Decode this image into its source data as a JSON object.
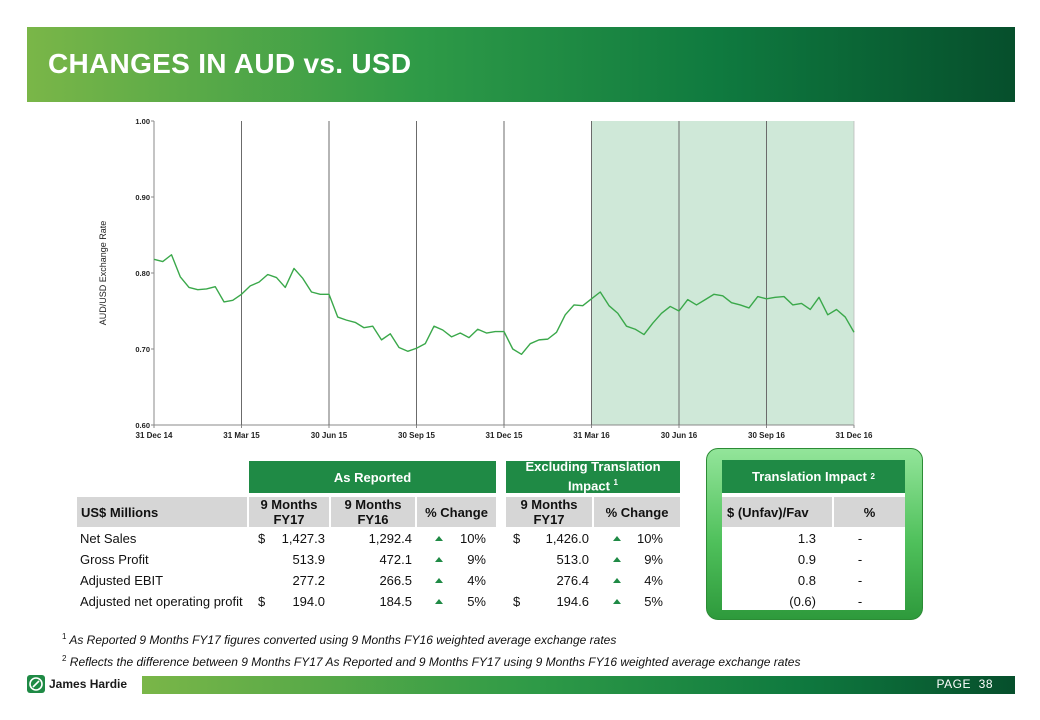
{
  "header": {
    "title": "CHANGES IN AUD vs. USD"
  },
  "chart_data": {
    "type": "line",
    "ylabel": "AUD/USD Exchange Rate",
    "ylim": [
      0.6,
      1.0
    ],
    "yticks": [
      "1.00",
      "0.90",
      "0.80",
      "0.70",
      "0.60"
    ],
    "yticks_values": [
      1.0,
      0.9,
      0.8,
      0.7,
      0.6
    ],
    "categories": [
      "31 Dec 14",
      "31 Mar 15",
      "30 Jun 15",
      "30 Sep 15",
      "31 Dec 15",
      "31 Mar 16",
      "30 Jun 16",
      "30 Sep 16",
      "31 Dec 16"
    ],
    "vertical_gridlines_at": [
      1,
      2,
      3,
      4,
      5,
      6,
      7
    ],
    "shaded_range": [
      5,
      8
    ],
    "line_color": "#3aa84a",
    "shade_color": "#cfe8d8",
    "series": [
      {
        "x": [
          0,
          0.1,
          0.2,
          0.3,
          0.4,
          0.5,
          0.6,
          0.7,
          0.8,
          0.9,
          1.0,
          1.1,
          1.2,
          1.3,
          1.4,
          1.5,
          1.6,
          1.7,
          1.8,
          1.9,
          2.0,
          2.1,
          2.2,
          2.3,
          2.4,
          2.5,
          2.6,
          2.7,
          2.8,
          2.9,
          3.0,
          3.1,
          3.2,
          3.3,
          3.4,
          3.5,
          3.6,
          3.7,
          3.8,
          3.9,
          4.0,
          4.1,
          4.2,
          4.3,
          4.4,
          4.5,
          4.6,
          4.7,
          4.8,
          4.9,
          5.0,
          5.1,
          5.2,
          5.3,
          5.4,
          5.5,
          5.6,
          5.7,
          5.8,
          5.9,
          6.0,
          6.1,
          6.2,
          6.3,
          6.4,
          6.5,
          6.6,
          6.7,
          6.8,
          6.9,
          7.0,
          7.1,
          7.2,
          7.3,
          7.4,
          7.5,
          7.6,
          7.7,
          7.8,
          7.9,
          8.0
        ],
        "y": [
          0.818,
          0.815,
          0.824,
          0.795,
          0.781,
          0.778,
          0.779,
          0.782,
          0.762,
          0.764,
          0.772,
          0.783,
          0.788,
          0.798,
          0.794,
          0.781,
          0.806,
          0.793,
          0.775,
          0.772,
          0.772,
          0.742,
          0.738,
          0.735,
          0.728,
          0.73,
          0.712,
          0.72,
          0.702,
          0.697,
          0.701,
          0.707,
          0.73,
          0.725,
          0.716,
          0.721,
          0.715,
          0.726,
          0.721,
          0.723,
          0.723,
          0.7,
          0.693,
          0.707,
          0.712,
          0.713,
          0.722,
          0.745,
          0.758,
          0.757,
          0.766,
          0.775,
          0.757,
          0.747,
          0.73,
          0.726,
          0.719,
          0.734,
          0.747,
          0.756,
          0.75,
          0.765,
          0.758,
          0.765,
          0.772,
          0.77,
          0.761,
          0.758,
          0.754,
          0.769,
          0.766,
          0.768,
          0.769,
          0.758,
          0.76,
          0.752,
          0.768,
          0.745,
          0.752,
          0.742,
          0.722
        ]
      }
    ]
  },
  "table": {
    "group_headers": {
      "as_reported": "As Reported",
      "excluding_line1": "Excluding Translation",
      "excluding_line2": "Impact",
      "excluding_sup": "1",
      "translation": "Translation Impact",
      "translation_sup": "2"
    },
    "column_headers": {
      "label": "US$ Millions",
      "fy17_l1": "9 Months",
      "fy17_l2": "FY17",
      "fy16_l1": "9 Months",
      "fy16_l2": "FY16",
      "pct": "% Change",
      "ex_fy17_l1": "9 Months",
      "ex_fy17_l2": "FY17",
      "ex_pct": "% Change",
      "ti_fav": "$ (Unfav)/Fav",
      "ti_pct": "%"
    },
    "rows": [
      {
        "label": "Net Sales",
        "cur1": "$",
        "fy17": "1,427.3",
        "fy16": "1,292.4",
        "pct": "10%",
        "cur2": "$",
        "ex_fy17": "1,426.0",
        "ex_pct": "10%",
        "ti": "1.3",
        "ti_pct": "-"
      },
      {
        "label": "Gross Profit",
        "cur1": "",
        "fy17": "513.9",
        "fy16": "472.1",
        "pct": "9%",
        "cur2": "",
        "ex_fy17": "513.0",
        "ex_pct": "9%",
        "ti": "0.9",
        "ti_pct": "-"
      },
      {
        "label": "Adjusted EBIT",
        "cur1": "",
        "fy17": "277.2",
        "fy16": "266.5",
        "pct": "4%",
        "cur2": "",
        "ex_fy17": "276.4",
        "ex_pct": "4%",
        "ti": "0.8",
        "ti_pct": "-"
      },
      {
        "label": "Adjusted net operating profit",
        "cur1": "$",
        "fy17": "194.0",
        "fy16": "184.5",
        "pct": "5%",
        "cur2": "$",
        "ex_fy17": "194.6",
        "ex_pct": "5%",
        "ti": "(0.6)",
        "ti_pct": "-"
      }
    ]
  },
  "footnotes": [
    {
      "num": "1",
      "text": "As Reported 9 Months FY17 figures converted using 9 Months FY16 weighted average exchange rates"
    },
    {
      "num": "2",
      "text": "Reflects the difference between 9 Months FY17 As Reported and 9 Months FY17 using 9 Months FY16 weighted average exchange rates"
    }
  ],
  "footer": {
    "brand": "James Hardie",
    "page_label": "PAGE",
    "page_number": "38"
  }
}
